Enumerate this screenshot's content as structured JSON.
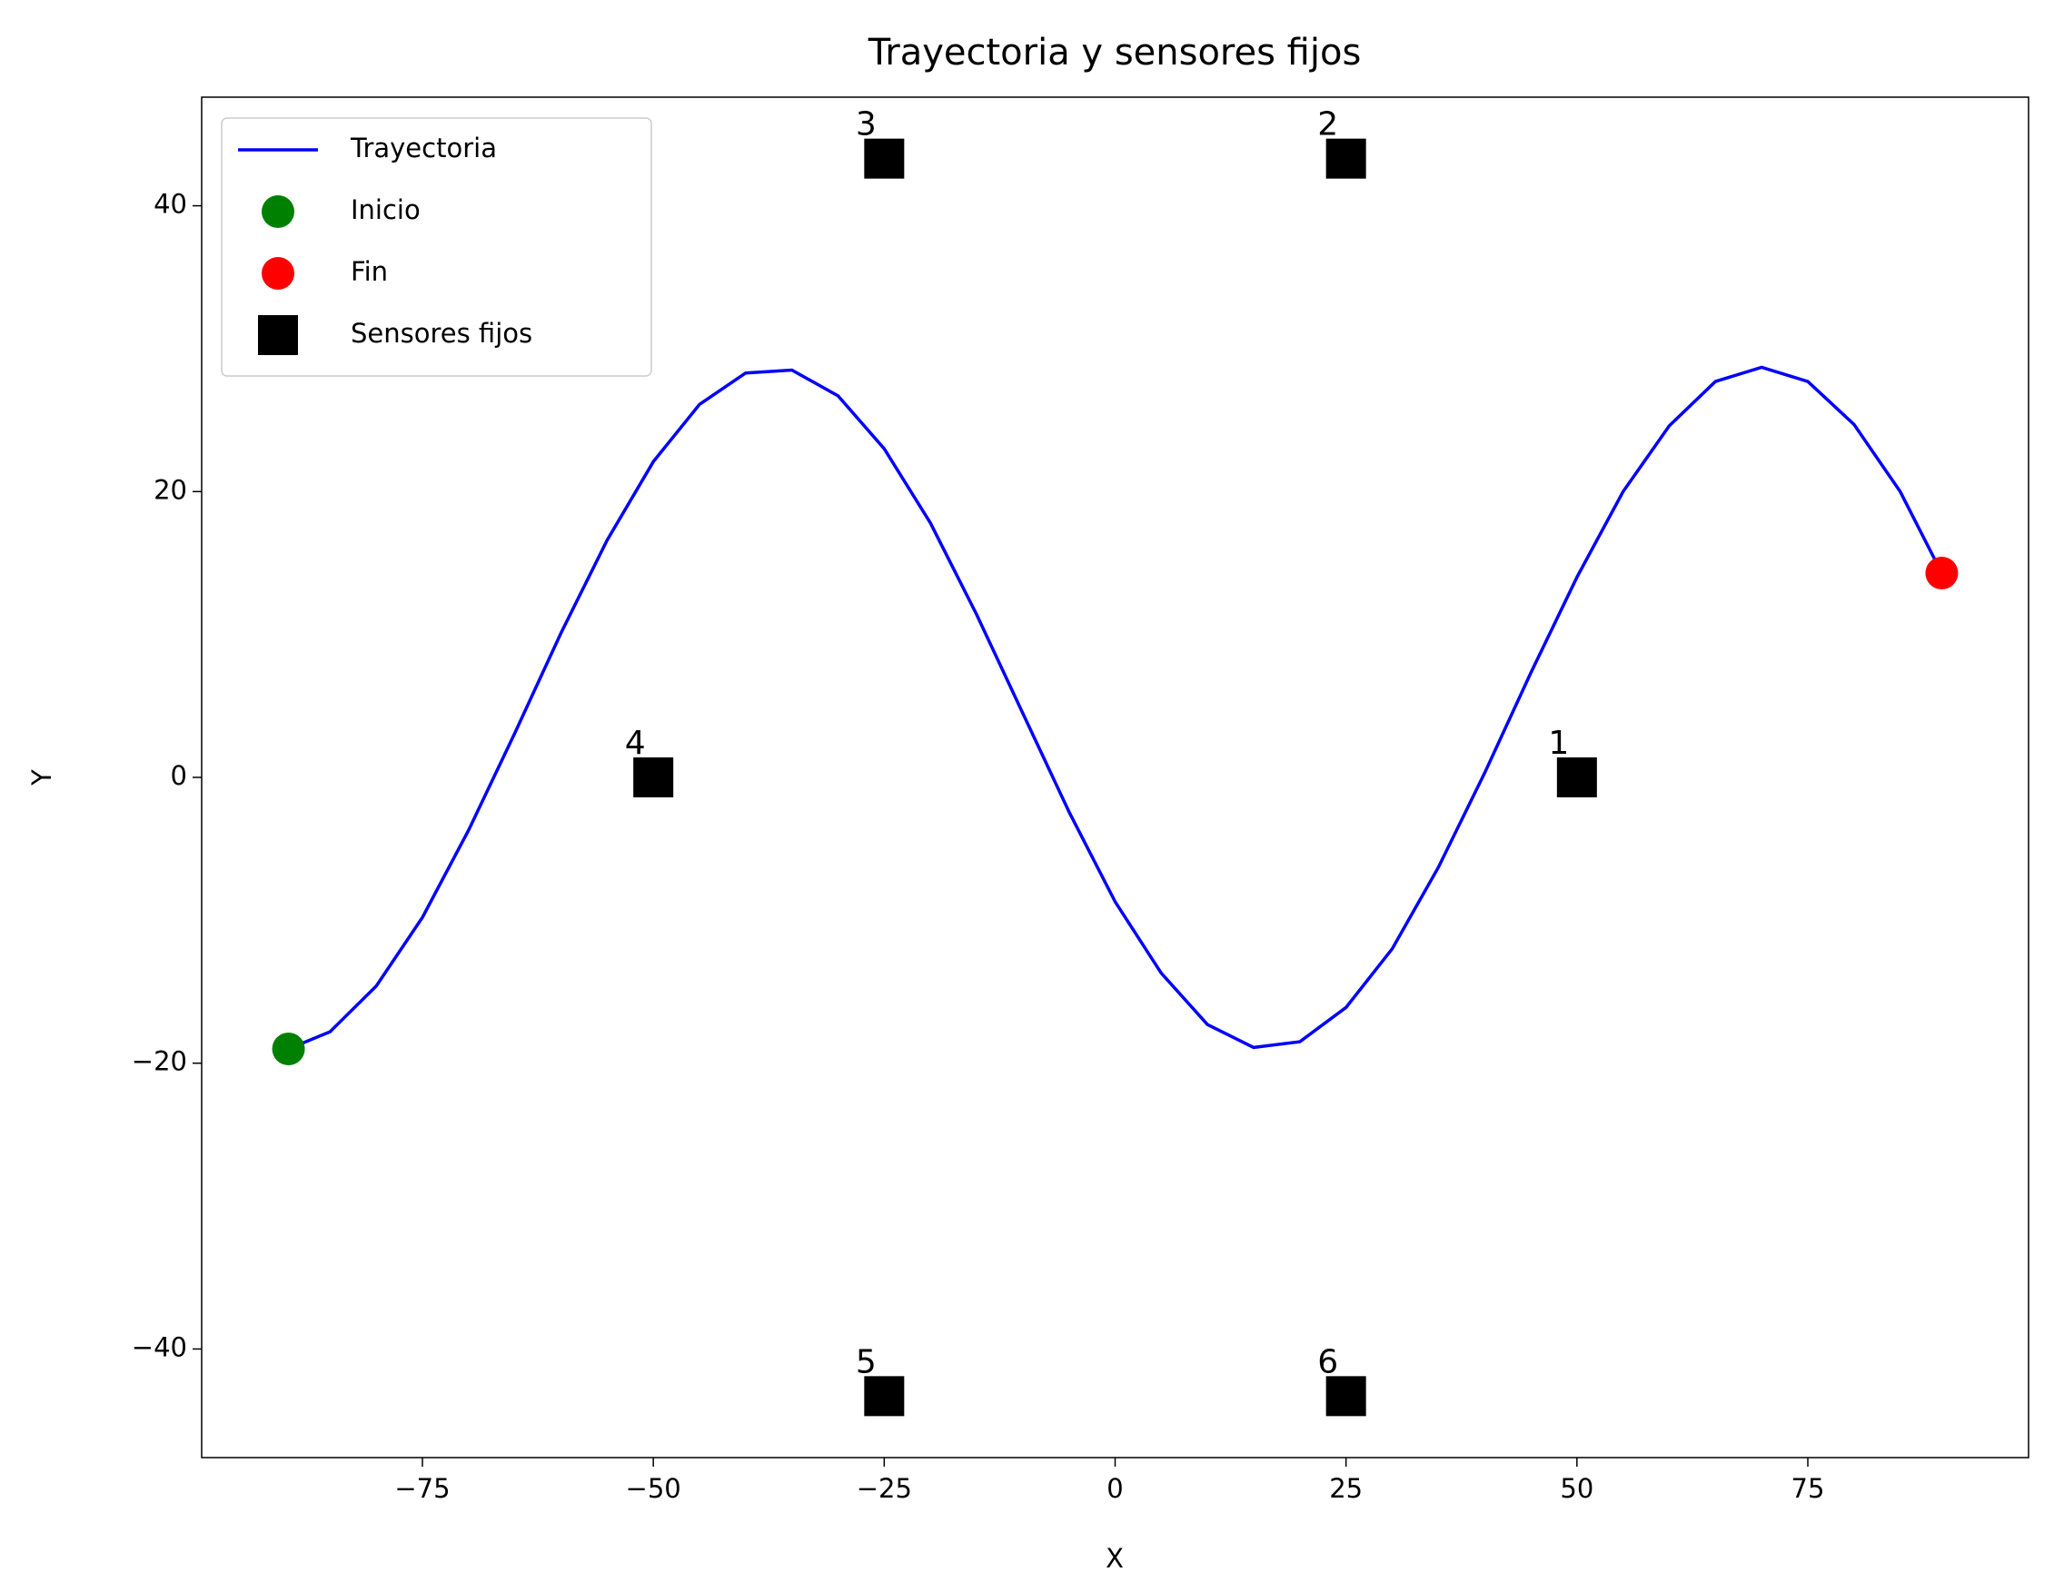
{
  "chart_data": {
    "type": "line",
    "title": "Trayectoria y sensores fijos",
    "xlabel": "X",
    "ylabel": "Y",
    "xlim": [
      -98.9,
      98.9
    ],
    "ylim": [
      -47.6,
      47.6
    ],
    "xticks": [
      {
        "value": -75,
        "label": "−75"
      },
      {
        "value": -50,
        "label": "−50"
      },
      {
        "value": -25,
        "label": "−25"
      },
      0,
      25,
      50,
      75
    ],
    "yticks": [
      {
        "value": -40,
        "label": "−40"
      },
      {
        "value": -20,
        "label": "−20"
      },
      0,
      20,
      40
    ],
    "legend": "upper left",
    "series": [
      {
        "name": "Trayectoria",
        "color": "#0000ff",
        "style": "line",
        "x": [
          -89.5,
          -85,
          -80,
          -75,
          -70,
          -65,
          -60,
          -55,
          -50,
          -45,
          -40,
          -35,
          -30,
          -25,
          -20,
          -15,
          -10,
          -5,
          0,
          5,
          10,
          15,
          20,
          25,
          30,
          35,
          40,
          45,
          50,
          55,
          60,
          65,
          70,
          75,
          80,
          85,
          89.5
        ],
        "values": [
          -19.0,
          -17.8,
          -14.6,
          -9.8,
          -3.7,
          3.1,
          10.1,
          16.6,
          22.1,
          26.1,
          28.3,
          28.5,
          26.7,
          23.0,
          17.8,
          11.4,
          4.5,
          -2.4,
          -8.7,
          -13.7,
          -17.3,
          -18.9,
          -18.5,
          -16.1,
          -12.0,
          -6.3,
          0.3,
          7.3,
          14.0,
          20.0,
          24.6,
          27.7,
          28.7,
          27.7,
          24.7,
          20.0,
          14.3
        ]
      },
      {
        "name": "Inicio",
        "color": "#008000",
        "style": "marker",
        "marker": "circle",
        "x": [
          -89.5
        ],
        "values": [
          -19.0
        ]
      },
      {
        "name": "Fin",
        "color": "#ff0000",
        "style": "marker",
        "marker": "circle",
        "x": [
          89.5
        ],
        "values": [
          14.3
        ]
      },
      {
        "name": "Sensores fijos",
        "color": "#000000",
        "style": "marker",
        "marker": "square",
        "x": [
          50,
          25,
          -25,
          -50,
          -25,
          25
        ],
        "values": [
          0,
          43.3,
          43.3,
          0,
          -43.3,
          -43.3
        ],
        "labels": [
          "1",
          "2",
          "3",
          "4",
          "5",
          "6"
        ]
      }
    ]
  }
}
